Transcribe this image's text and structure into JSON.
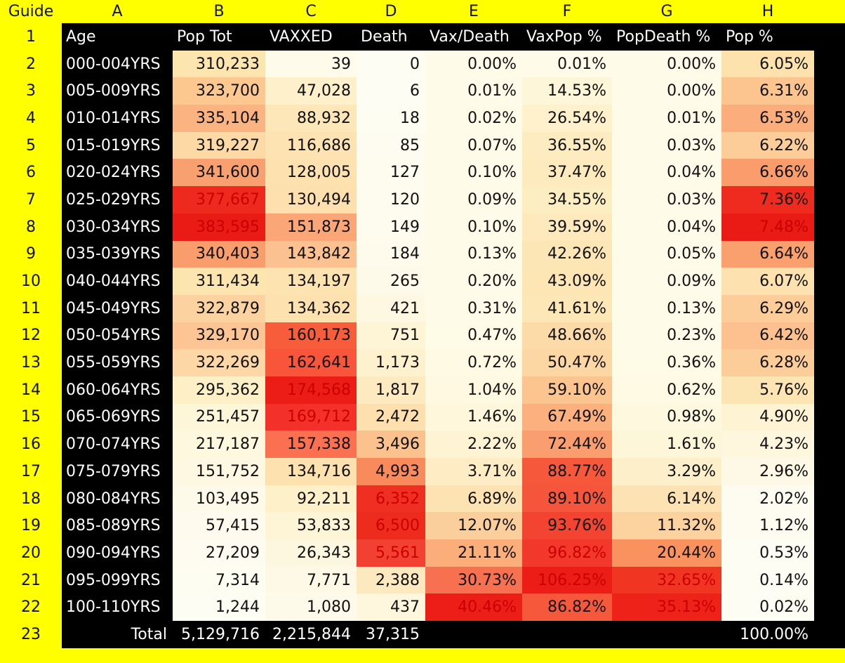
{
  "guide_label": "Guide",
  "col_letters": [
    "A",
    "B",
    "C",
    "D",
    "E",
    "F",
    "G",
    "H"
  ],
  "row_numbers": [
    "1",
    "2",
    "3",
    "4",
    "5",
    "6",
    "7",
    "8",
    "9",
    "10",
    "11",
    "12",
    "13",
    "14",
    "15",
    "16",
    "17",
    "18",
    "19",
    "20",
    "21",
    "22",
    "23"
  ],
  "headers": [
    "Age",
    "Pop Tot",
    "VAXXED",
    "Death",
    "Vax/Death",
    "VaxPop %",
    "PopDeath %",
    "Pop %"
  ],
  "rows": [
    {
      "age": "000-004YRS",
      "pop": "310,233",
      "vax": "39",
      "death": "0",
      "vd": "0.00%",
      "vp": "0.01%",
      "pd": "0.00%",
      "pp": "6.05%"
    },
    {
      "age": "005-009YRS",
      "pop": "323,700",
      "vax": "47,028",
      "death": "6",
      "vd": "0.01%",
      "vp": "14.53%",
      "pd": "0.00%",
      "pp": "6.31%"
    },
    {
      "age": "010-014YRS",
      "pop": "335,104",
      "vax": "88,932",
      "death": "18",
      "vd": "0.02%",
      "vp": "26.54%",
      "pd": "0.01%",
      "pp": "6.53%"
    },
    {
      "age": "015-019YRS",
      "pop": "319,227",
      "vax": "116,686",
      "death": "85",
      "vd": "0.07%",
      "vp": "36.55%",
      "pd": "0.03%",
      "pp": "6.22%"
    },
    {
      "age": "020-024YRS",
      "pop": "341,600",
      "vax": "128,005",
      "death": "127",
      "vd": "0.10%",
      "vp": "37.47%",
      "pd": "0.04%",
      "pp": "6.66%"
    },
    {
      "age": "025-029YRS",
      "pop": "377,667",
      "vax": "130,494",
      "death": "120",
      "vd": "0.09%",
      "vp": "34.55%",
      "pd": "0.03%",
      "pp": "7.36%"
    },
    {
      "age": "030-034YRS",
      "pop": "383,595",
      "vax": "151,873",
      "death": "149",
      "vd": "0.10%",
      "vp": "39.59%",
      "pd": "0.04%",
      "pp": "7.48%"
    },
    {
      "age": "035-039YRS",
      "pop": "340,403",
      "vax": "143,842",
      "death": "184",
      "vd": "0.13%",
      "vp": "42.26%",
      "pd": "0.05%",
      "pp": "6.64%"
    },
    {
      "age": "040-044YRS",
      "pop": "311,434",
      "vax": "134,197",
      "death": "265",
      "vd": "0.20%",
      "vp": "43.09%",
      "pd": "0.09%",
      "pp": "6.07%"
    },
    {
      "age": "045-049YRS",
      "pop": "322,879",
      "vax": "134,362",
      "death": "421",
      "vd": "0.31%",
      "vp": "41.61%",
      "pd": "0.13%",
      "pp": "6.29%"
    },
    {
      "age": "050-054YRS",
      "pop": "329,170",
      "vax": "160,173",
      "death": "751",
      "vd": "0.47%",
      "vp": "48.66%",
      "pd": "0.23%",
      "pp": "6.42%"
    },
    {
      "age": "055-059YRS",
      "pop": "322,269",
      "vax": "162,641",
      "death": "1,173",
      "vd": "0.72%",
      "vp": "50.47%",
      "pd": "0.36%",
      "pp": "6.28%"
    },
    {
      "age": "060-064YRS",
      "pop": "295,362",
      "vax": "174,568",
      "death": "1,817",
      "vd": "1.04%",
      "vp": "59.10%",
      "pd": "0.62%",
      "pp": "5.76%"
    },
    {
      "age": "065-069YRS",
      "pop": "251,457",
      "vax": "169,712",
      "death": "2,472",
      "vd": "1.46%",
      "vp": "67.49%",
      "pd": "0.98%",
      "pp": "4.90%"
    },
    {
      "age": "070-074YRS",
      "pop": "217,187",
      "vax": "157,338",
      "death": "3,496",
      "vd": "2.22%",
      "vp": "72.44%",
      "pd": "1.61%",
      "pp": "4.23%"
    },
    {
      "age": "075-079YRS",
      "pop": "151,752",
      "vax": "134,716",
      "death": "4,993",
      "vd": "3.71%",
      "vp": "88.77%",
      "pd": "3.29%",
      "pp": "2.96%"
    },
    {
      "age": "080-084YRS",
      "pop": "103,495",
      "vax": "92,211",
      "death": "6,352",
      "vd": "6.89%",
      "vp": "89.10%",
      "pd": "6.14%",
      "pp": "2.02%"
    },
    {
      "age": "085-089YRS",
      "pop": "57,415",
      "vax": "53,833",
      "death": "6,500",
      "vd": "12.07%",
      "vp": "93.76%",
      "pd": "11.32%",
      "pp": "1.12%"
    },
    {
      "age": "090-094YRS",
      "pop": "27,209",
      "vax": "26,343",
      "death": "5,561",
      "vd": "21.11%",
      "vp": "96.82%",
      "pd": "20.44%",
      "pp": "0.53%"
    },
    {
      "age": "095-099YRS",
      "pop": "7,314",
      "vax": "7,771",
      "death": "2,388",
      "vd": "30.73%",
      "vp": "106.25%",
      "pd": "32.65%",
      "pp": "0.14%"
    },
    {
      "age": "100-110YRS",
      "pop": "1,244",
      "vax": "1,080",
      "death": "437",
      "vd": "40.46%",
      "vp": "86.82%",
      "pd": "35.13%",
      "pp": "0.02%"
    }
  ],
  "totals": {
    "label": "Total",
    "pop": "5,129,716",
    "vax": "2,215,844",
    "death": "37,315",
    "pp": "100.00%"
  },
  "heat_colors": {
    "pop": [
      "#fde5b0",
      "#fcc890",
      "#fbb382",
      "#fdd9a5",
      "#f9a070",
      "#ee2a1e",
      "#ea1a14",
      "#fa9d6c",
      "#fde5b0",
      "#fcd2a0",
      "#fcc593",
      "#fdd7a6",
      "#fef0c6",
      "#fef6d8",
      "#fef8df",
      "#fef8e3",
      "#fefae9",
      "#fefbee",
      "#fefcf0",
      "#fefdf2",
      "#fefdf3"
    ],
    "vax": [
      "#fefbea",
      "#fef0cb",
      "#fde7b8",
      "#fde3b1",
      "#fde1ae",
      "#fde0ad",
      "#fba676",
      "#fcc190",
      "#fde3b0",
      "#fde2b0",
      "#f85d3b",
      "#f8553a",
      "#ec1c16",
      "#f3312a",
      "#fa7050",
      "#fde1ae",
      "#fef0c9",
      "#fef4d6",
      "#fef7df",
      "#fef9e6",
      "#fefae9"
    ],
    "death": [
      "#fefdf3",
      "#fefdf3",
      "#fefdf2",
      "#fefcf0",
      "#fefcef",
      "#fefcef",
      "#fefcee",
      "#fefbed",
      "#fefae9",
      "#fef8e3",
      "#fef4d6",
      "#fef1ce",
      "#fdeac1",
      "#fde0ae",
      "#fbc28e",
      "#f98a5c",
      "#ef2f22",
      "#ee2c1e",
      "#f24132",
      "#fde9c0",
      "#fef7dd"
    ],
    "vd": [
      "#fefce9",
      "#fefce9",
      "#fefce9",
      "#fefce9",
      "#fefce9",
      "#fefce9",
      "#fefce9",
      "#fefce9",
      "#fefce9",
      "#fefce8",
      "#fefbe6",
      "#fefae4",
      "#fef9e0",
      "#fef7dc",
      "#fef4d4",
      "#feecc4",
      "#fde2b2",
      "#fbcf9c",
      "#fbae7a",
      "#f77050",
      "#ed1e18"
    ],
    "vp": [
      "#fefbe8",
      "#fef6d8",
      "#fef1cc",
      "#fdecbf",
      "#fdebbe",
      "#fdeec2",
      "#fde9bc",
      "#fde6b6",
      "#fde5b4",
      "#fde7b7",
      "#fddba8",
      "#fdd7a3",
      "#fcc48f",
      "#fbb07e",
      "#fa9e6f",
      "#f6583c",
      "#f5553a",
      "#f24430",
      "#f1382a",
      "#ec1c16",
      "#f6583c"
    ],
    "pd": [
      "#fefce9",
      "#fefce9",
      "#fefce9",
      "#fefce9",
      "#fefce9",
      "#fefce9",
      "#fefce9",
      "#fefce9",
      "#fefce9",
      "#fefce9",
      "#fefbe8",
      "#fefbe6",
      "#fefae3",
      "#fef8df",
      "#fef6d9",
      "#feefcb",
      "#fde3b3",
      "#fcd29f",
      "#f9925f",
      "#f03623",
      "#ee2218"
    ],
    "pp": [
      "#fde2ae",
      "#fcc590",
      "#fbae7c",
      "#fdcd99",
      "#fa9c6c",
      "#ef2a1e",
      "#ea1a14",
      "#fa9f6e",
      "#fde1ae",
      "#fdcd99",
      "#fcc18e",
      "#fdcd99",
      "#fde5b3",
      "#fef3d3",
      "#fef6dd",
      "#fef9e7",
      "#fefcf0",
      "#fefcf0",
      "#fefdf3",
      "#fefdf3",
      "#fefdf3"
    ]
  },
  "dark_threshold": "#ee2a1e"
}
